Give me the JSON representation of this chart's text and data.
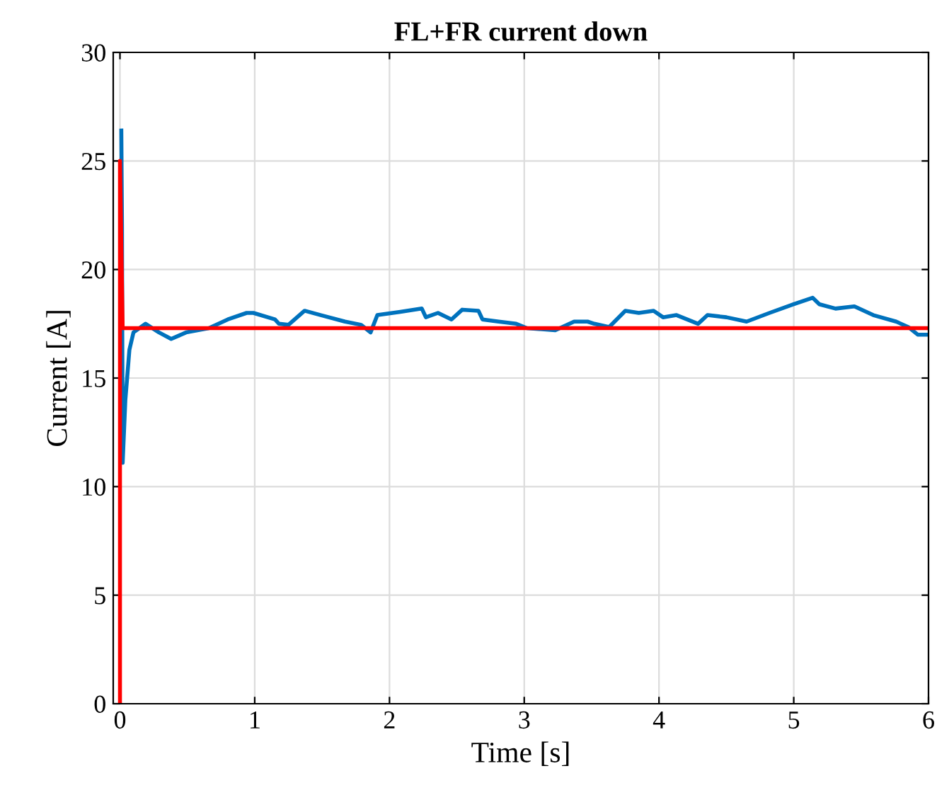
{
  "chart_data": {
    "type": "line",
    "title": "FL+FR current down",
    "xlabel": "Time [s]",
    "ylabel": "Current [A]",
    "xlim": [
      -0.05,
      6
    ],
    "ylim": [
      0,
      30
    ],
    "xticks": [
      0,
      1,
      2,
      3,
      4,
      5,
      6
    ],
    "yticks": [
      0,
      5,
      10,
      15,
      20,
      25,
      30
    ],
    "grid": true,
    "legend": false,
    "marker": "none",
    "line_style": "solid",
    "series": [
      {
        "color": "#0072bd",
        "x": [
          0.01,
          0.015,
          0.02,
          0.04,
          0.07,
          0.1,
          0.19,
          0.29,
          0.38,
          0.49,
          0.66,
          0.8,
          0.94,
          0.99,
          1.15,
          1.18,
          1.25,
          1.37,
          1.49,
          1.67,
          1.79,
          1.86,
          1.91,
          2.08,
          2.24,
          2.27,
          2.36,
          2.46,
          2.54,
          2.66,
          2.69,
          2.81,
          2.94,
          3.02,
          3.13,
          3.23,
          3.37,
          3.47,
          3.52,
          3.63,
          3.75,
          3.85,
          3.96,
          4.03,
          4.13,
          4.29,
          4.36,
          4.5,
          4.65,
          4.82,
          5.0,
          5.14,
          5.19,
          5.31,
          5.45,
          5.59,
          5.76,
          5.85,
          5.92,
          6.0
        ],
        "values": [
          26.4,
          22.0,
          11.1,
          14.0,
          16.3,
          17.1,
          17.5,
          17.1,
          16.8,
          17.1,
          17.3,
          17.7,
          18.0,
          18.0,
          17.7,
          17.5,
          17.45,
          18.1,
          17.9,
          17.6,
          17.45,
          17.1,
          17.9,
          18.05,
          18.2,
          17.8,
          18.0,
          17.7,
          18.15,
          18.1,
          17.7,
          17.6,
          17.5,
          17.3,
          17.25,
          17.2,
          17.6,
          17.6,
          17.5,
          17.35,
          18.1,
          18.0,
          18.1,
          17.8,
          17.9,
          17.5,
          17.9,
          17.8,
          17.6,
          18.0,
          18.4,
          18.7,
          18.4,
          18.2,
          18.3,
          17.9,
          17.6,
          17.35,
          17.0,
          17.0
        ]
      },
      {
        "color": "#ff0000",
        "x": [
          0,
          0,
          0.02,
          6
        ],
        "values": [
          0,
          25,
          17.3,
          17.3
        ]
      }
    ]
  }
}
